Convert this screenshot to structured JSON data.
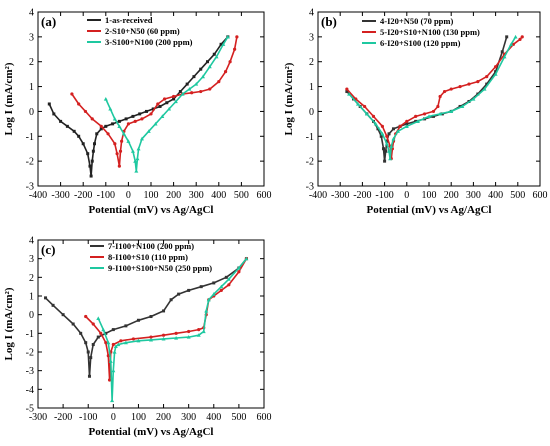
{
  "chart_data": [
    {
      "type": "line",
      "panel_label": "(a)",
      "xlabel": "Potential (mV) vs Ag/AgCl",
      "ylabel": "Log I (mA/cm²)",
      "xlim": [
        -400,
        600
      ],
      "ylim": [
        -3,
        4
      ],
      "xticks": [
        -400,
        -300,
        -200,
        -100,
        0,
        100,
        200,
        300,
        400,
        500,
        600
      ],
      "yticks": [
        -3,
        -2,
        -1,
        0,
        1,
        2,
        3,
        4
      ],
      "grid": false,
      "legend_position": "top-left",
      "series": [
        {
          "name": "1-as-received",
          "color": "#222222",
          "marker": "square",
          "x": [
            -350,
            -330,
            -300,
            -270,
            -240,
            -220,
            -200,
            -180,
            -170,
            -165,
            -160,
            -155,
            -150,
            -140,
            -120,
            -100,
            -70,
            -40,
            -10,
            20,
            50,
            80,
            110,
            140,
            170,
            200,
            230,
            260,
            290,
            320,
            350,
            380,
            410,
            440
          ],
          "y": [
            0.3,
            -0.1,
            -0.4,
            -0.6,
            -0.8,
            -1.0,
            -1.3,
            -1.7,
            -2.2,
            -2.6,
            -2.0,
            -1.6,
            -1.3,
            -0.9,
            -0.7,
            -0.6,
            -0.5,
            -0.4,
            -0.3,
            -0.2,
            -0.1,
            0.0,
            0.1,
            0.2,
            0.35,
            0.5,
            0.8,
            1.1,
            1.4,
            1.7,
            2.0,
            2.3,
            2.7,
            3.0
          ]
        },
        {
          "name": "2-S10+N50 (60 ppm)",
          "color": "#d42020",
          "marker": "circle",
          "x": [
            -250,
            -220,
            -190,
            -160,
            -120,
            -90,
            -60,
            -50,
            -40,
            -35,
            -30,
            -20,
            0,
            30,
            60,
            100,
            130,
            160,
            200,
            240,
            280,
            320,
            360,
            400,
            430,
            450,
            470,
            480
          ],
          "y": [
            0.7,
            0.3,
            0.0,
            -0.3,
            -0.6,
            -0.9,
            -1.3,
            -1.7,
            -2.2,
            -1.6,
            -1.2,
            -0.8,
            -0.5,
            -0.4,
            -0.3,
            -0.1,
            0.3,
            0.5,
            0.6,
            0.7,
            0.75,
            0.8,
            0.9,
            1.2,
            1.6,
            2.0,
            2.5,
            3.0
          ]
        },
        {
          "name": "3-S100+N100 (200 ppm)",
          "color": "#1ec8a0",
          "marker": "triangle",
          "x": [
            -100,
            -80,
            -60,
            -40,
            -20,
            0,
            20,
            30,
            35,
            40,
            45,
            60,
            90,
            120,
            150,
            180,
            210,
            240,
            270,
            300,
            330,
            360,
            390,
            420,
            440
          ],
          "y": [
            0.5,
            0.1,
            -0.3,
            -0.6,
            -0.9,
            -1.2,
            -1.6,
            -2.0,
            -2.4,
            -1.9,
            -1.5,
            -1.1,
            -0.8,
            -0.5,
            -0.2,
            0.1,
            0.4,
            0.7,
            0.9,
            1.1,
            1.4,
            1.8,
            2.2,
            2.7,
            3.0
          ]
        }
      ]
    },
    {
      "type": "line",
      "panel_label": "(b)",
      "xlabel": "Potential (mV) vs Ag/AgCl",
      "ylabel": "Log I (mA/cm²)",
      "xlim": [
        -400,
        600
      ],
      "ylim": [
        -3,
        4
      ],
      "xticks": [
        -400,
        -300,
        -200,
        -100,
        0,
        100,
        200,
        300,
        400,
        500,
        600
      ],
      "yticks": [
        -3,
        -2,
        -1,
        0,
        1,
        2,
        3,
        4
      ],
      "grid": false,
      "legend_position": "top-left",
      "series": [
        {
          "name": "4-I20+N50 (70 ppm)",
          "color": "#333333",
          "marker": "square",
          "x": [
            -270,
            -240,
            -210,
            -180,
            -150,
            -130,
            -115,
            -105,
            -100,
            -95,
            -90,
            -80,
            -60,
            -30,
            0,
            40,
            80,
            120,
            160,
            200,
            240,
            280,
            320,
            360,
            400,
            430,
            450
          ],
          "y": [
            0.8,
            0.5,
            0.2,
            -0.1,
            -0.4,
            -0.7,
            -1.0,
            -1.5,
            -2.0,
            -1.6,
            -1.2,
            -0.9,
            -0.7,
            -0.6,
            -0.5,
            -0.4,
            -0.3,
            -0.2,
            -0.1,
            0.0,
            0.2,
            0.4,
            0.7,
            1.1,
            1.6,
            2.4,
            3.0
          ]
        },
        {
          "name": "5-I20+S10+N100 (130 ppm)",
          "color": "#d42020",
          "marker": "circle",
          "x": [
            -270,
            -230,
            -190,
            -150,
            -110,
            -90,
            -75,
            -70,
            -65,
            -60,
            -50,
            -30,
            0,
            40,
            80,
            120,
            140,
            150,
            170,
            200,
            240,
            280,
            320,
            360,
            400,
            440,
            480,
            510,
            520
          ],
          "y": [
            0.9,
            0.5,
            0.2,
            -0.2,
            -0.6,
            -1.0,
            -1.4,
            -1.9,
            -1.5,
            -1.2,
            -0.9,
            -0.6,
            -0.4,
            -0.2,
            -0.1,
            0.0,
            0.2,
            0.6,
            0.8,
            0.9,
            1.0,
            1.1,
            1.2,
            1.4,
            1.8,
            2.3,
            2.7,
            2.9,
            3.0
          ]
        },
        {
          "name": "6-I20+S100 (120 ppm)",
          "color": "#1ec8a0",
          "marker": "triangle",
          "x": [
            -260,
            -220,
            -180,
            -140,
            -110,
            -90,
            -80,
            -75,
            -70,
            -60,
            -40,
            0,
            50,
            100,
            150,
            200,
            250,
            300,
            350,
            400,
            440,
            470,
            490
          ],
          "y": [
            0.7,
            0.3,
            -0.1,
            -0.5,
            -0.9,
            -1.3,
            -1.6,
            -1.9,
            -1.4,
            -1.1,
            -0.8,
            -0.6,
            -0.4,
            -0.2,
            -0.1,
            0.0,
            0.2,
            0.5,
            0.9,
            1.5,
            2.2,
            2.7,
            3.0
          ]
        }
      ]
    },
    {
      "type": "line",
      "panel_label": "(c)",
      "xlabel": "Potential (mV) vs Ag/AgCl",
      "ylabel": "Log I (mA/cm²)",
      "xlim": [
        -300,
        600
      ],
      "ylim": [
        -5,
        4
      ],
      "xticks": [
        -300,
        -200,
        -100,
        0,
        100,
        200,
        300,
        400,
        500,
        600
      ],
      "yticks": [
        -5,
        -4,
        -3,
        -2,
        -1,
        0,
        1,
        2,
        3,
        4
      ],
      "grid": false,
      "legend_position": "top-left",
      "series": [
        {
          "name": "7-I100+N100 (200 ppm)",
          "color": "#333333",
          "marker": "square",
          "x": [
            -270,
            -240,
            -200,
            -160,
            -130,
            -110,
            -100,
            -95,
            -90,
            -80,
            -60,
            -30,
            0,
            50,
            100,
            150,
            200,
            230,
            260,
            300,
            350,
            400,
            450,
            500,
            530
          ],
          "y": [
            0.9,
            0.5,
            0.0,
            -0.5,
            -1.0,
            -1.5,
            -2.0,
            -3.3,
            -2.3,
            -1.6,
            -1.2,
            -1.0,
            -0.8,
            -0.6,
            -0.3,
            -0.1,
            0.2,
            0.8,
            1.1,
            1.3,
            1.5,
            1.7,
            2.0,
            2.5,
            3.0
          ]
        },
        {
          "name": "8-I100+S10 (110 ppm)",
          "color": "#d42020",
          "marker": "circle",
          "x": [
            -110,
            -80,
            -50,
            -30,
            -20,
            -15,
            -10,
            0,
            30,
            80,
            150,
            200,
            250,
            300,
            340,
            360,
            370,
            380,
            400,
            430,
            460,
            500,
            530
          ],
          "y": [
            -0.1,
            -0.5,
            -1.0,
            -1.5,
            -2.2,
            -3.5,
            -2.0,
            -1.6,
            -1.4,
            -1.3,
            -1.2,
            -1.1,
            -1.0,
            -0.9,
            -0.8,
            -0.7,
            0.0,
            0.8,
            1.0,
            1.3,
            1.6,
            2.3,
            3.0
          ]
        },
        {
          "name": "9-I100+S100+N50 (250 ppm)",
          "color": "#1ec8a0",
          "marker": "triangle",
          "x": [
            -60,
            -40,
            -20,
            -10,
            -5,
            0,
            5,
            10,
            20,
            50,
            100,
            150,
            200,
            250,
            300,
            340,
            360,
            370,
            380,
            400,
            430,
            460,
            500,
            530
          ],
          "y": [
            -0.2,
            -0.8,
            -1.5,
            -2.5,
            -4.6,
            -3.0,
            -2.0,
            -1.7,
            -1.6,
            -1.5,
            -1.4,
            -1.35,
            -1.3,
            -1.25,
            -1.2,
            -1.1,
            -0.9,
            0.2,
            0.8,
            1.1,
            1.5,
            1.9,
            2.5,
            3.0
          ]
        }
      ]
    }
  ]
}
